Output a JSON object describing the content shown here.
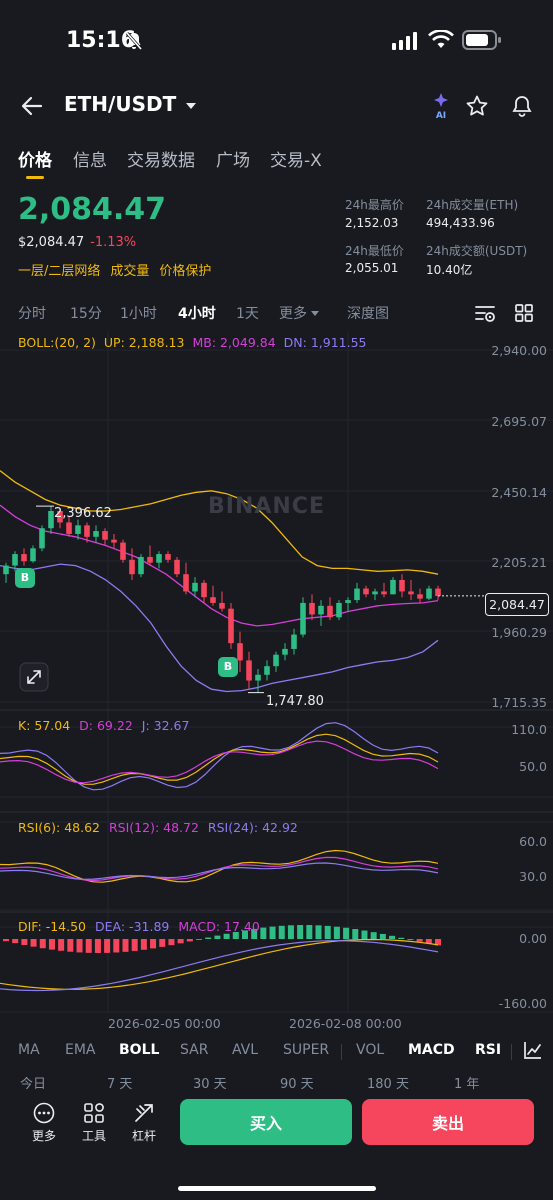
{
  "status": {
    "time": "15:16"
  },
  "header": {
    "pair": "ETH/USDT",
    "ai_label": "AI"
  },
  "tabs": [
    "价格",
    "信息",
    "交易数据",
    "广场",
    "交易-X"
  ],
  "price": {
    "last": "2,084.47",
    "usd": "$2,084.47",
    "change": "-1.13%",
    "links": [
      "一层/二层网络",
      "成交量",
      "价格保护"
    ]
  },
  "stats": {
    "high_label": "24h最高价",
    "high": "2,152.03",
    "vol_eth_label": "24h成交量(ETH)",
    "vol_eth": "494,433.96",
    "low_label": "24h最低价",
    "low": "2,055.01",
    "vol_usdt_label": "24h成交额(USDT)",
    "vol_usdt": "10.40亿"
  },
  "intervals": [
    "分时",
    "15分",
    "1小时",
    "4小时",
    "1天",
    "更多",
    "深度图"
  ],
  "active_interval": "4小时",
  "boll": {
    "label": "BOLL:(20, 2)",
    "up": "UP: 2,188.13",
    "mb": "MB: 2,049.84",
    "dn": "DN: 1,911.55"
  },
  "main_axis": [
    "2,940.00",
    "2,695.07",
    "2,450.14",
    "2,205.21",
    "1,960.29",
    "1,715.35"
  ],
  "current_price_tag": "2,084.47",
  "annotations": {
    "high": "2,396.62",
    "low": "1,747.80",
    "buy_marker": "B"
  },
  "watermark": "BINANCE",
  "kdj": {
    "k": "K: 57.04",
    "d": "D: 69.22",
    "j": "J: 32.67",
    "axis": [
      "110.0",
      "50.0"
    ]
  },
  "rsi": {
    "r6": "RSI(6): 48.62",
    "r12": "RSI(12): 48.72",
    "r24": "RSI(24): 42.92",
    "axis": [
      "60.0",
      "30.0"
    ]
  },
  "macd": {
    "dif": "DIF: -14.50",
    "dea": "DEA: -31.89",
    "macd": "MACD: 17.40",
    "axis": [
      "0.00",
      "-160.00"
    ]
  },
  "time_axis": [
    "2026-02-05 00:00",
    "2026-02-08 00:00"
  ],
  "bottom_indicators": [
    "MA",
    "EMA",
    "BOLL",
    "SAR",
    "AVL",
    "SUPER",
    "VOL",
    "MACD",
    "RSI"
  ],
  "periods": [
    "今日",
    "7 天",
    "30 天",
    "90 天",
    "180 天",
    "1 年"
  ],
  "tools": [
    "更多",
    "工具",
    "杠杆"
  ],
  "actions": {
    "buy": "买入",
    "sell": "卖出"
  },
  "colors": {
    "up": "#2ebd85",
    "down": "#f6465d",
    "accent": "#f0b90b",
    "bg": "#181a20"
  },
  "chart_data": {
    "type": "candlestick",
    "ylim": [
      1715.35,
      2940.0
    ],
    "candles": [
      [
        2160,
        2200,
        2130,
        2190
      ],
      [
        2190,
        2240,
        2170,
        2230
      ],
      [
        2230,
        2250,
        2190,
        2205
      ],
      [
        2205,
        2260,
        2200,
        2250
      ],
      [
        2250,
        2330,
        2240,
        2320
      ],
      [
        2320,
        2397,
        2300,
        2380
      ],
      [
        2380,
        2390,
        2320,
        2340
      ],
      [
        2340,
        2360,
        2290,
        2300
      ],
      [
        2300,
        2350,
        2280,
        2330
      ],
      [
        2330,
        2340,
        2270,
        2290
      ],
      [
        2290,
        2330,
        2270,
        2310
      ],
      [
        2310,
        2320,
        2260,
        2280
      ],
      [
        2280,
        2300,
        2250,
        2270
      ],
      [
        2270,
        2280,
        2200,
        2210
      ],
      [
        2210,
        2250,
        2140,
        2160
      ],
      [
        2160,
        2230,
        2150,
        2220
      ],
      [
        2220,
        2260,
        2190,
        2200
      ],
      [
        2200,
        2240,
        2180,
        2230
      ],
      [
        2230,
        2240,
        2200,
        2210
      ],
      [
        2210,
        2220,
        2150,
        2160
      ],
      [
        2160,
        2200,
        2090,
        2100
      ],
      [
        2100,
        2150,
        2080,
        2130
      ],
      [
        2130,
        2140,
        2060,
        2080
      ],
      [
        2080,
        2120,
        2050,
        2060
      ],
      [
        2060,
        2100,
        2030,
        2040
      ],
      [
        2040,
        2060,
        1900,
        1920
      ],
      [
        1920,
        1960,
        1820,
        1860
      ],
      [
        1860,
        1890,
        1760,
        1790
      ],
      [
        1790,
        1830,
        1748,
        1810
      ],
      [
        1810,
        1860,
        1790,
        1840
      ],
      [
        1840,
        1890,
        1820,
        1880
      ],
      [
        1880,
        1920,
        1860,
        1900
      ],
      [
        1900,
        1970,
        1880,
        1950
      ],
      [
        1950,
        2080,
        1940,
        2060
      ],
      [
        2060,
        2090,
        2000,
        2020
      ],
      [
        2020,
        2070,
        1980,
        2050
      ],
      [
        2050,
        2080,
        2000,
        2010
      ],
      [
        2010,
        2070,
        2000,
        2060
      ],
      [
        2060,
        2080,
        2030,
        2070
      ],
      [
        2070,
        2130,
        2060,
        2110
      ],
      [
        2110,
        2120,
        2080,
        2090
      ],
      [
        2090,
        2110,
        2070,
        2100
      ],
      [
        2100,
        2130,
        2080,
        2090
      ],
      [
        2090,
        2150,
        2090,
        2140
      ],
      [
        2140,
        2160,
        2080,
        2100
      ],
      [
        2100,
        2140,
        2070,
        2090
      ],
      [
        2090,
        2110,
        2060,
        2075
      ],
      [
        2075,
        2120,
        2070,
        2110
      ],
      [
        2110,
        2120,
        2070,
        2084
      ]
    ],
    "boll_up": [
      2520,
      2480,
      2450,
      2420,
      2400,
      2390,
      2380,
      2380,
      2385,
      2395,
      2405,
      2420,
      2435,
      2445,
      2450,
      2440,
      2420,
      2390,
      2340,
      2280,
      2220,
      2190,
      2180,
      2180,
      2175,
      2170,
      2172,
      2175,
      2170,
      2160
    ],
    "boll_mb": [
      2400,
      2360,
      2330,
      2310,
      2300,
      2290,
      2275,
      2260,
      2240,
      2220,
      2190,
      2160,
      2120,
      2080,
      2040,
      2010,
      1990,
      1980,
      1985,
      1995,
      2005,
      2010,
      2015,
      2030,
      2040,
      2050,
      2055,
      2058,
      2060,
      2068
    ],
    "boll_dn": [
      2190,
      2180,
      2175,
      2185,
      2195,
      2190,
      2170,
      2140,
      2100,
      2050,
      1990,
      1910,
      1840,
      1790,
      1760,
      1752,
      1755,
      1765,
      1780,
      1790,
      1800,
      1810,
      1820,
      1835,
      1845,
      1855,
      1860,
      1870,
      1890,
      1930
    ]
  }
}
